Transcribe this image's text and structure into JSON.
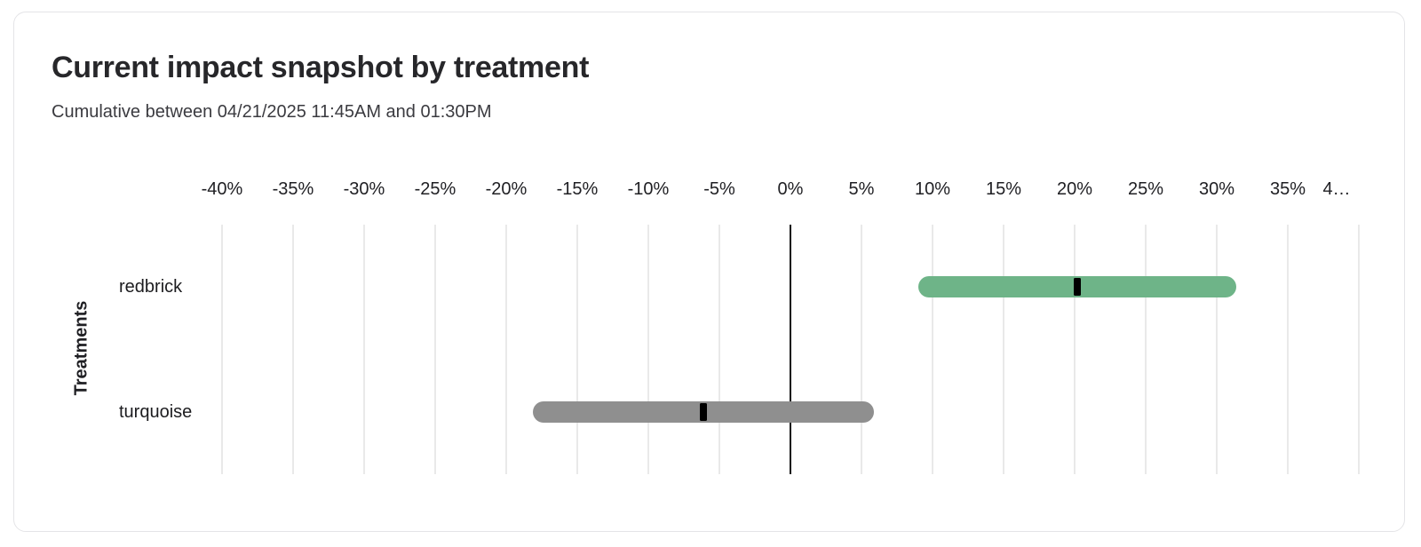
{
  "card": {
    "title": "Current impact snapshot by treatment",
    "subtitle": "Cumulative between 04/21/2025 11:45AM and 01:30PM"
  },
  "chart_data": {
    "type": "range_bar",
    "orientation": "horizontal",
    "title": "Current impact snapshot by treatment",
    "subtitle": "Cumulative between 04/21/2025 11:45AM and 01:30PM",
    "xlabel": "",
    "ylabel": "Treatments",
    "x_unit": "percent",
    "xlim": [
      -40,
      40
    ],
    "x_tick_step": 5,
    "x_tick_labels": [
      "-40%",
      "-35%",
      "-30%",
      "-25%",
      "-20%",
      "-15%",
      "-10%",
      "-5%",
      "0%",
      "5%",
      "10%",
      "15%",
      "20%",
      "25%",
      "30%",
      "35%",
      "4…"
    ],
    "grid": "vertical-only",
    "zero_line": true,
    "legend": "none",
    "categories": [
      "redbrick",
      "turquoise"
    ],
    "series": [
      {
        "name": "redbrick",
        "range_low": 9.0,
        "range_high": 31.4,
        "point_estimate": 20.2,
        "bar_color": "#6eb488"
      },
      {
        "name": "turquoise",
        "range_low": -18.1,
        "range_high": 5.9,
        "point_estimate": -6.1,
        "bar_color": "#8f8f8f"
      }
    ],
    "marker_color": "#000000",
    "grid_color": "#e9e9e9",
    "zero_line_color": "#111111",
    "card_border_color": "#e4e4e7"
  }
}
